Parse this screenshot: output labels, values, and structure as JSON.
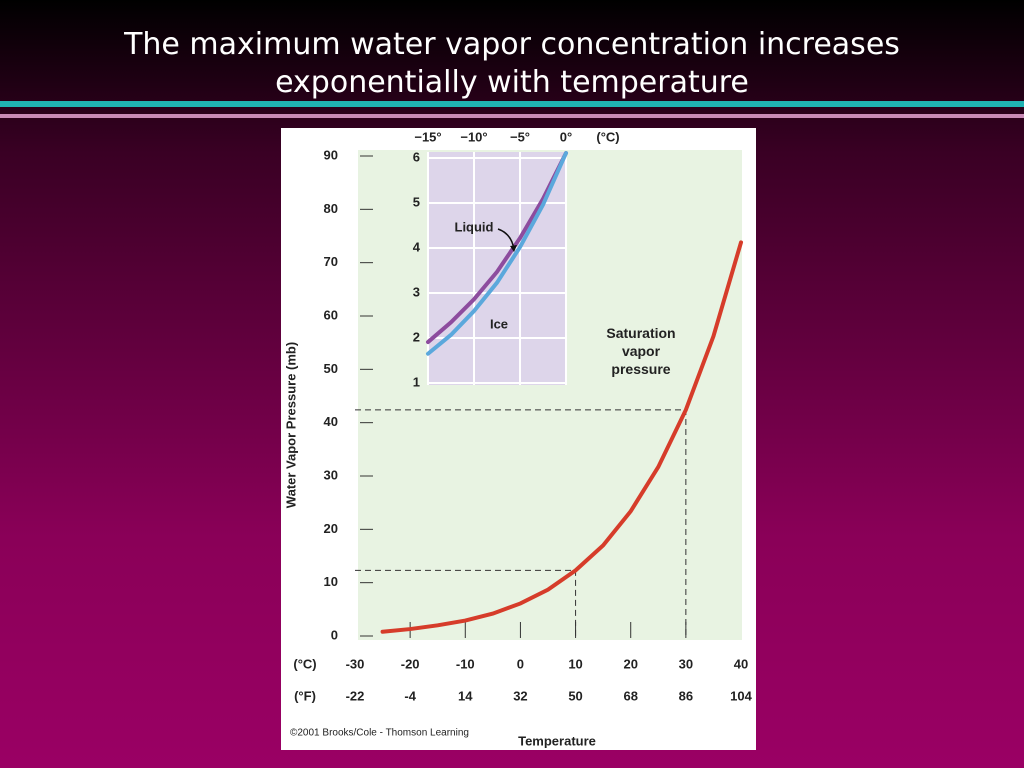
{
  "slide": {
    "title": "The maximum water vapor concentration increases exponentially with temperature"
  },
  "chart_data": [
    {
      "type": "line",
      "y_label": "Water Vapor Pressure (mb)",
      "x_label": "Temperature",
      "x_unit": "(°C)",
      "x2_unit": "(°F)",
      "credit": "©2001 Brooks/Cole - Thomson Learning",
      "x": [
        -25,
        -20,
        -15,
        -10,
        -5,
        0,
        5,
        10,
        15,
        20,
        25,
        30,
        35,
        40
      ],
      "series": [
        {
          "name": "Saturation vapor pressure",
          "color": "#d63c2a",
          "values": [
            0.8,
            1.3,
            2.0,
            2.9,
            4.2,
            6.1,
            8.7,
            12.3,
            17.0,
            23.4,
            31.7,
            42.4,
            56.2,
            73.8
          ]
        }
      ],
      "xlim": [
        -30,
        40
      ],
      "xticks": [
        -30,
        -20,
        -10,
        0,
        10,
        20,
        30,
        40
      ],
      "x2lim": [
        -22,
        104
      ],
      "x2ticks": [
        -22,
        -4,
        14,
        32,
        50,
        68,
        86,
        104
      ],
      "ylim": [
        0,
        90
      ],
      "yticks": [
        0,
        10,
        20,
        30,
        40,
        50,
        60,
        70,
        80,
        90
      ],
      "guides": [
        {
          "x": 10,
          "y": 12.3
        },
        {
          "x": 30,
          "y": 42.4
        }
      ]
    },
    {
      "type": "line",
      "x_unit": "(°C)",
      "x": [
        -15,
        -12.5,
        -10,
        -7.5,
        -5,
        -2.5,
        0
      ],
      "series": [
        {
          "name": "Liquid",
          "color": "#8d4c9e",
          "values": [
            1.91,
            2.35,
            2.86,
            3.47,
            4.22,
            5.09,
            6.11
          ]
        },
        {
          "name": "Ice",
          "color": "#5ba8dc",
          "values": [
            1.65,
            2.07,
            2.6,
            3.23,
            4.02,
            4.96,
            6.11
          ]
        }
      ],
      "xlim": [
        -15,
        0
      ],
      "xticks": [
        {
          "value": -15,
          "label": "−15°"
        },
        {
          "value": -10,
          "label": "−10°"
        },
        {
          "value": -5,
          "label": "−5°"
        },
        {
          "value": 0,
          "label": "0°"
        }
      ],
      "ylim": [
        1,
        6
      ],
      "yticks": [
        1,
        2,
        3,
        4,
        5,
        6
      ],
      "grid": true
    }
  ]
}
